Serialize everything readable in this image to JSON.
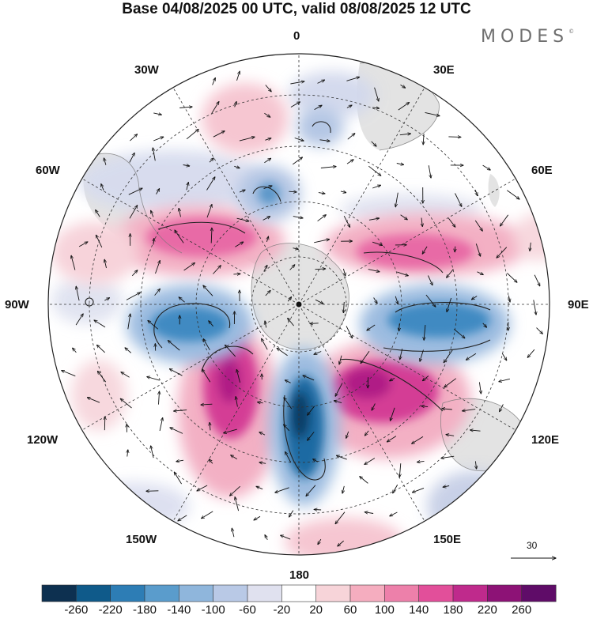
{
  "title": "Base 04/08/2025 00 UTC, valid 08/08/2025 12 UTC",
  "brand": "MODES",
  "brand_mark": "©",
  "map": {
    "projection": "south-polar-stereographic",
    "longitude_labels": {
      "top": "0",
      "bottom": "180",
      "left": "90W",
      "right": "90E",
      "upper_left_1": "30W",
      "upper_left_2": "60W",
      "upper_right_1": "30E",
      "upper_right_2": "60E",
      "lower_left_1": "120W",
      "lower_left_2": "150W",
      "lower_right_1": "120E",
      "lower_right_2": "150E"
    },
    "vector_scale_label": "30"
  },
  "colorbar": {
    "labels": [
      "-260",
      "-220",
      "-180",
      "-140",
      "-100",
      "-60",
      "-20",
      "20",
      "60",
      "100",
      "140",
      "180",
      "220",
      "260"
    ],
    "colors": [
      "#0d3050",
      "#0f5a8a",
      "#2d7db5",
      "#5a9ccc",
      "#8fb6dc",
      "#b9c9e6",
      "#e0e1ef",
      "#ffffff",
      "#f7d4d9",
      "#f5adbf",
      "#ed80aa",
      "#e24f9a",
      "#bf2a8c",
      "#8d1276",
      "#5f0c68"
    ]
  }
}
